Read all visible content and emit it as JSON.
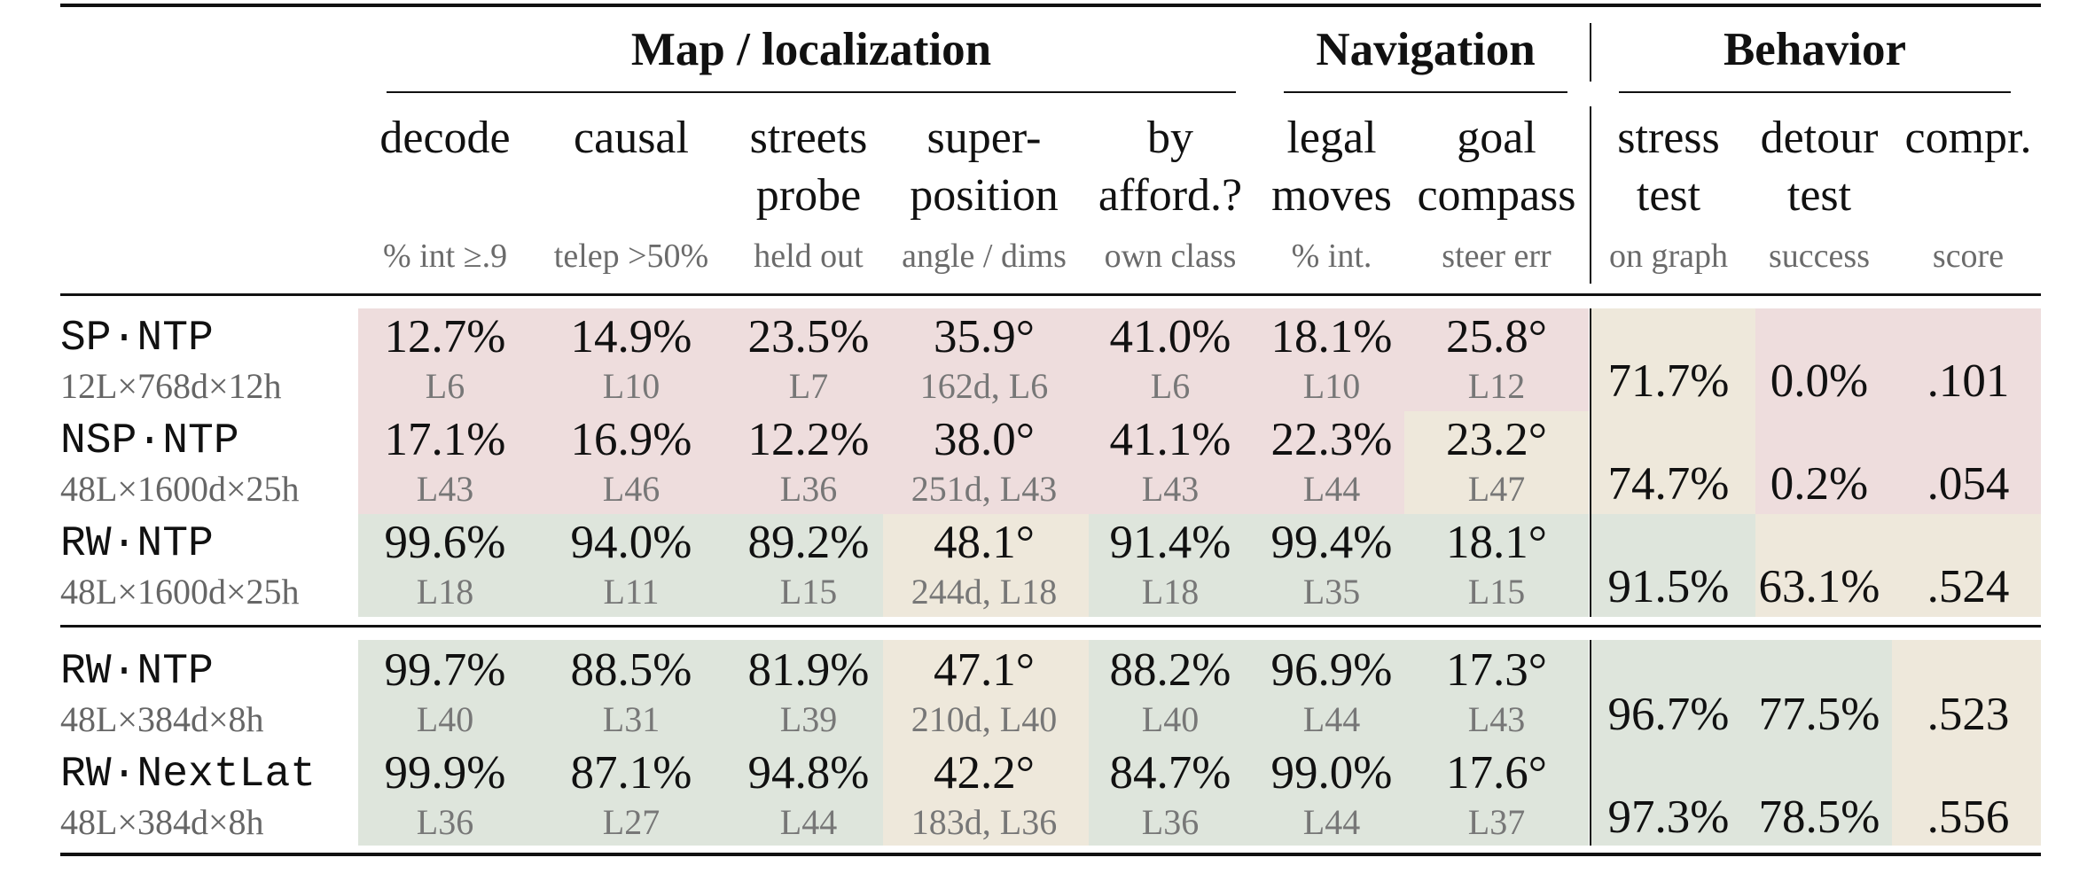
{
  "groups": {
    "map": "Map / localization",
    "nav": "Navigation",
    "behavior": "Behavior"
  },
  "columns": [
    {
      "l1": "decode",
      "l2": "",
      "sub": "% int ≥.9"
    },
    {
      "l1": "causal",
      "l2": "",
      "sub": "telep >50%"
    },
    {
      "l1": "streets",
      "l2": "probe",
      "sub": "held out"
    },
    {
      "l1": "super-",
      "l2": "position",
      "sub": "angle / dims"
    },
    {
      "l1": "by",
      "l2": "afford.?",
      "sub": "own class"
    },
    {
      "l1": "legal",
      "l2": "moves",
      "sub": "% int."
    },
    {
      "l1": "goal",
      "l2": "compass",
      "sub": "steer err"
    },
    {
      "l1": "stress",
      "l2": "test",
      "sub": "on graph"
    },
    {
      "l1": "detour",
      "l2": "test",
      "sub": "success"
    },
    {
      "l1": "compr.",
      "l2": "",
      "sub": "score"
    }
  ],
  "rows": [
    {
      "model": "SP·NTP",
      "arch": "12L×768d×12h",
      "vals": [
        "12.7%",
        "14.9%",
        "23.5%",
        "35.9°",
        "41.0%",
        "18.1%",
        "25.8°"
      ],
      "layers": [
        "L6",
        "L10",
        "L7",
        "162d, L6",
        "L6",
        "L10",
        "L12"
      ],
      "beh": [
        "71.7%",
        "0.0%",
        ".101"
      ]
    },
    {
      "model": "NSP·NTP",
      "arch": "48L×1600d×25h",
      "vals": [
        "17.1%",
        "16.9%",
        "12.2%",
        "38.0°",
        "41.1%",
        "22.3%",
        "23.2°"
      ],
      "layers": [
        "L43",
        "L46",
        "L36",
        "251d, L43",
        "L43",
        "L44",
        "L47"
      ],
      "beh": [
        "74.7%",
        "0.2%",
        ".054"
      ]
    },
    {
      "model": "RW·NTP",
      "arch": "48L×1600d×25h",
      "vals": [
        "99.6%",
        "94.0%",
        "89.2%",
        "48.1°",
        "91.4%",
        "99.4%",
        "18.1°"
      ],
      "layers": [
        "L18",
        "L11",
        "L15",
        "244d, L18",
        "L18",
        "L35",
        "L15"
      ],
      "beh": [
        "91.5%",
        "63.1%",
        ".524"
      ]
    },
    {
      "model": "RW·NTP",
      "arch": "48L×384d×8h",
      "vals": [
        "99.7%",
        "88.5%",
        "81.9%",
        "47.1°",
        "88.2%",
        "96.9%",
        "17.3°"
      ],
      "layers": [
        "L40",
        "L31",
        "L39",
        "210d, L40",
        "L40",
        "L44",
        "L43"
      ],
      "beh": [
        "96.7%",
        "77.5%",
        ".523"
      ]
    },
    {
      "model": "RW·NextLat",
      "arch": "48L×384d×8h",
      "vals": [
        "99.9%",
        "87.1%",
        "94.8%",
        "42.2°",
        "84.7%",
        "99.0%",
        "17.6°"
      ],
      "layers": [
        "L36",
        "L27",
        "L44",
        "183d, L36",
        "L36",
        "L44",
        "L37"
      ],
      "beh": [
        "97.3%",
        "78.5%",
        ".556"
      ]
    }
  ],
  "colors": {
    "pink": "#eedddd",
    "green": "#dee5dc",
    "beige": "#eee8db"
  }
}
